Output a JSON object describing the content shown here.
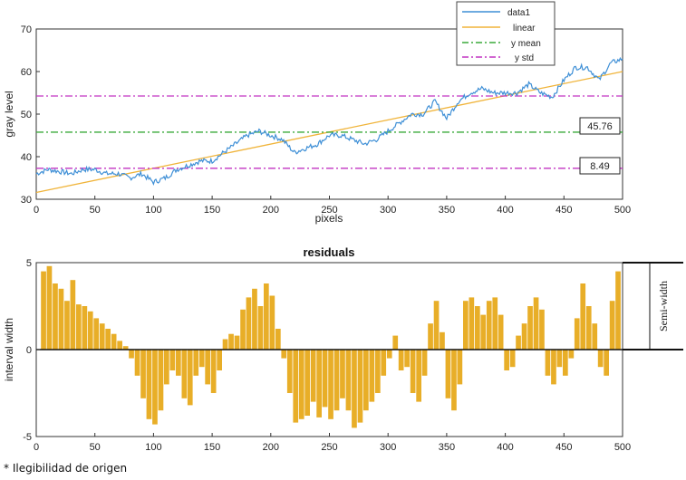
{
  "footnote": "* Ilegibilidad de origen",
  "colors": {
    "data": "#3e8fd6",
    "linear": "#f0b43a",
    "mean": "#3aaa3a",
    "std": "#c233c2",
    "residual": "#e8ae28"
  },
  "chart_data": [
    {
      "type": "line",
      "xlabel": "pixels",
      "ylabel": "gray level",
      "xlim": [
        0,
        500
      ],
      "ylim": [
        30,
        70
      ],
      "xticks": [
        0,
        50,
        100,
        150,
        200,
        250,
        300,
        350,
        400,
        450,
        500
      ],
      "yticks": [
        30,
        40,
        50,
        60,
        70
      ],
      "legend": {
        "position": "top-right",
        "entries": [
          "data1",
          "linear",
          "y mean",
          "y std"
        ]
      },
      "series": [
        {
          "name": "data1",
          "x": [
            0,
            10,
            20,
            30,
            40,
            50,
            60,
            70,
            80,
            90,
            100,
            110,
            120,
            130,
            140,
            150,
            160,
            170,
            180,
            190,
            200,
            210,
            220,
            230,
            240,
            250,
            260,
            270,
            280,
            290,
            300,
            310,
            320,
            330,
            340,
            350,
            360,
            370,
            380,
            390,
            400,
            410,
            420,
            430,
            440,
            450,
            460,
            470,
            480,
            490,
            500
          ],
          "y": [
            36,
            37,
            36.5,
            36,
            37,
            37,
            36,
            36,
            35,
            36,
            34,
            35,
            37,
            38,
            39,
            39,
            41,
            43,
            45,
            46,
            45,
            44,
            41,
            42,
            43,
            45,
            45,
            44,
            43,
            44,
            46,
            48,
            50,
            50,
            53,
            49,
            53,
            55,
            56,
            55,
            55,
            55,
            57,
            55,
            54,
            58,
            61,
            61,
            58,
            62,
            63
          ]
        },
        {
          "name": "linear",
          "x": [
            0,
            500
          ],
          "y": [
            31.6,
            60
          ]
        },
        {
          "name": "y mean",
          "x": [
            0,
            500
          ],
          "y": [
            45.76,
            45.76
          ]
        },
        {
          "name": "y std",
          "x": [
            0,
            500
          ],
          "y": [
            37.27,
            37.27
          ]
        },
        {
          "name": "y std (upper)",
          "x": [
            0,
            500
          ],
          "y": [
            54.25,
            54.25
          ]
        }
      ],
      "annotations": [
        {
          "text": "45.76",
          "y": 45.76
        },
        {
          "text": "8.49",
          "y": 37.27
        }
      ]
    },
    {
      "type": "bar",
      "title": "residuals",
      "xlabel": "",
      "ylabel": "interval width",
      "xlim": [
        0,
        500
      ],
      "ylim": [
        -5,
        5
      ],
      "xticks": [
        0,
        50,
        100,
        150,
        200,
        250,
        300,
        350,
        400,
        450,
        500
      ],
      "yticks": [
        -5,
        0,
        5
      ],
      "bar_width": 2,
      "x": [
        5,
        10,
        15,
        20,
        25,
        30,
        35,
        40,
        45,
        50,
        55,
        60,
        65,
        70,
        75,
        80,
        85,
        90,
        95,
        100,
        105,
        110,
        115,
        120,
        125,
        130,
        135,
        140,
        145,
        150,
        155,
        160,
        165,
        170,
        175,
        180,
        185,
        190,
        195,
        200,
        205,
        210,
        215,
        220,
        225,
        230,
        235,
        240,
        245,
        250,
        255,
        260,
        265,
        270,
        275,
        280,
        285,
        290,
        295,
        300,
        305,
        310,
        315,
        320,
        325,
        330,
        335,
        340,
        345,
        350,
        355,
        360,
        365,
        370,
        375,
        380,
        385,
        390,
        395,
        400,
        405,
        410,
        415,
        420,
        425,
        430,
        435,
        440,
        445,
        450,
        455,
        460,
        465,
        470,
        475,
        480,
        485,
        490,
        495
      ],
      "values": [
        4.5,
        4.8,
        3.8,
        3.5,
        2.8,
        4.0,
        2.6,
        2.5,
        2.2,
        1.8,
        1.5,
        1.2,
        0.9,
        0.5,
        0.2,
        -0.5,
        -1.5,
        -2.8,
        -4.0,
        -4.3,
        -3.5,
        -2.0,
        -1.2,
        -1.5,
        -2.8,
        -3.2,
        -1.5,
        -1.0,
        -2.0,
        -2.5,
        -1.2,
        0.6,
        0.9,
        0.8,
        2.3,
        3.0,
        3.5,
        2.5,
        3.8,
        3.1,
        1.2,
        -0.5,
        -2.5,
        -4.2,
        -4.0,
        -3.8,
        -3.0,
        -3.9,
        -3.3,
        -4.0,
        -3.5,
        -2.8,
        -3.5,
        -4.5,
        -4.2,
        -3.5,
        -3.0,
        -2.5,
        -1.5,
        -0.5,
        0.8,
        -1.2,
        -1.0,
        -2.5,
        -3.0,
        -1.5,
        1.5,
        2.8,
        1.0,
        -2.8,
        -3.5,
        -2.0,
        2.8,
        3.0,
        2.5,
        2.0,
        2.8,
        3.0,
        2.0,
        -1.2,
        -1.0,
        0.8,
        1.5,
        2.5,
        3.0,
        2.3,
        -1.5,
        -2.0,
        -1.0,
        -1.5,
        -0.5,
        1.8,
        3.8,
        2.5,
        1.5,
        -1.0,
        -1.5,
        2.8,
        4.5
      ]
    }
  ]
}
